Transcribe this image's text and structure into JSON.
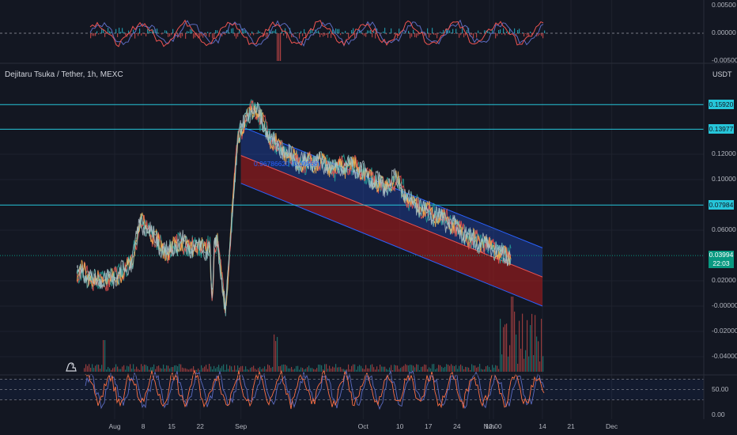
{
  "chart_title": "Dejitaru Tsuka / Tether, 1h, MEXC",
  "price_unit": "USDT",
  "fib_label": "0.96786620 (0.09568)",
  "colors": {
    "background": "#131722",
    "grid": "#1e222d",
    "horizontal_line": "#26c6da",
    "up": "#26a69a",
    "down": "#ef5350",
    "current_price": "#089981",
    "channel_upper": "#2962ff",
    "channel_lower": "#b71c1c",
    "rsi_line": "#ff7043",
    "rsi_signal": "#5c6bc0"
  },
  "current_price": {
    "value": "0.03994",
    "countdown": "22:03"
  },
  "chart_data": [
    {
      "type": "line",
      "panel": "price",
      "title": "Dejitaru Tsuka / Tether, 1h, MEXC",
      "ylabel": "USDT",
      "ylim": [
        -0.048,
        0.165
      ],
      "y_ticks": [
        "0.12000",
        "0.10000",
        "0.06000",
        "0.02000",
        "-0.00000",
        "-0.02000",
        "-0.04000"
      ],
      "x_ticks": [
        "Aug",
        "8",
        "15",
        "22",
        "Sep",
        "Oct",
        "10",
        "17",
        "24",
        "Nov",
        "12:00",
        "14",
        "21",
        "Dec"
      ],
      "x": [
        "Aug 1",
        "Aug 4",
        "Aug 8",
        "Aug 11",
        "Aug 13",
        "Aug 15",
        "Aug 17",
        "Aug 20",
        "Aug 22",
        "Aug 25",
        "Aug 27",
        "Aug 29",
        "Aug 31",
        "Sep 1",
        "Sep 3",
        "Sep 5",
        "Sep 8",
        "Sep 12",
        "Sep 16",
        "Sep 20",
        "Sep 24",
        "Sep 28",
        "Oct 2",
        "Oct 6",
        "Oct 10",
        "Oct 14",
        "Oct 17",
        "Oct 20",
        "Oct 24",
        "Oct 28",
        "Nov 1",
        "Nov 4",
        "Nov 8",
        "Nov 11",
        "Nov 14"
      ],
      "series": [
        {
          "values": [
            0.027,
            0.019,
            0.021,
            0.029,
            0.036,
            0.066,
            0.061,
            0.048,
            0.042,
            0.052,
            0.045,
            0.049,
            0.043,
            0.048,
            0.05,
            -0.002,
            0.135,
            0.158,
            0.132,
            0.12,
            0.112,
            0.115,
            0.108,
            0.112,
            0.102,
            0.094,
            0.101,
            0.083,
            0.075,
            0.07,
            0.061,
            0.053,
            0.049,
            0.043,
            0.04
          ]
        }
      ],
      "horizontal_lines": [
        {
          "label": "0.15920",
          "value": 0.1592
        },
        {
          "label": "0.13977",
          "value": 0.13977
        },
        {
          "label": "0.07984",
          "value": 0.07984
        }
      ],
      "channel": {
        "start": {
          "x": "Sep 1",
          "upper": 0.142,
          "middle": 0.119,
          "lower": 0.097
        },
        "end": {
          "x": "Nov 14",
          "upper": 0.046,
          "middle": 0.023,
          "lower": 0.0
        }
      }
    },
    {
      "type": "line",
      "panel": "oscillator",
      "y_ticks": [
        "0.00500",
        "0.00000",
        "-0.00500"
      ],
      "ylim": [
        -0.006,
        0.006
      ]
    },
    {
      "type": "bar",
      "panel": "volume"
    },
    {
      "type": "line",
      "panel": "rsi",
      "y_ticks": [
        "50.00",
        "0.00"
      ],
      "ylim": [
        0,
        100
      ],
      "bands": [
        30,
        70
      ]
    }
  ]
}
